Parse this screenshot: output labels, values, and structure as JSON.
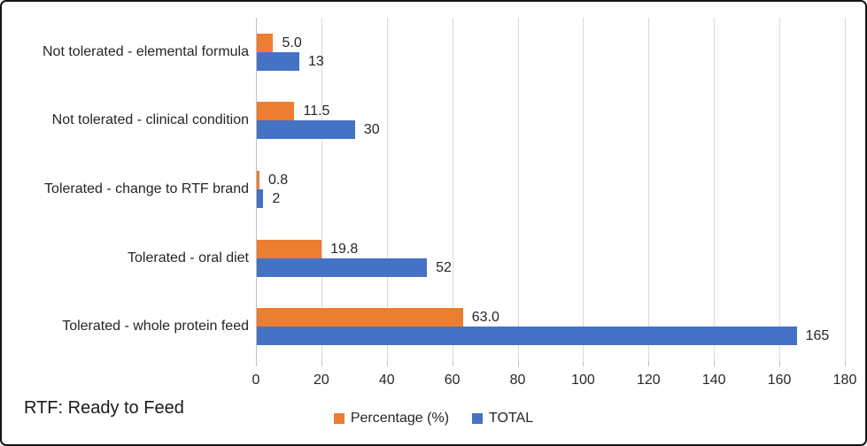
{
  "colors": {
    "percentage_series": "#ED7D31",
    "total_series": "#4472C4",
    "gridline": "#D9D9D9",
    "axis_line": "#BFBFBF",
    "text": "#262626",
    "border": "#141414"
  },
  "chart_data": {
    "type": "bar",
    "orientation": "horizontal",
    "title": "",
    "categories": [
      "Not tolerated - elemental formula",
      "Not tolerated - clinical condition",
      "Tolerated - change to RTF brand",
      "Tolerated - oral diet",
      "Tolerated - whole protein feed"
    ],
    "series": [
      {
        "name": "Percentage (%)",
        "color": "#ED7D31",
        "values": [
          5.0,
          11.5,
          0.8,
          19.8,
          63.0
        ],
        "labels": [
          "5.0",
          "11.5",
          "0.8",
          "19.8",
          "63.0"
        ]
      },
      {
        "name": "TOTAL",
        "color": "#4472C4",
        "values": [
          13,
          30,
          2,
          52,
          165
        ],
        "labels": [
          "13",
          "30",
          "2",
          "52",
          "165"
        ]
      }
    ],
    "xlim": [
      0,
      180
    ],
    "x_ticks": [
      0,
      20,
      40,
      60,
      80,
      100,
      120,
      140,
      160,
      180
    ],
    "grid": true,
    "legend_position": "bottom",
    "footnote": "RTF: Ready to Feed"
  }
}
